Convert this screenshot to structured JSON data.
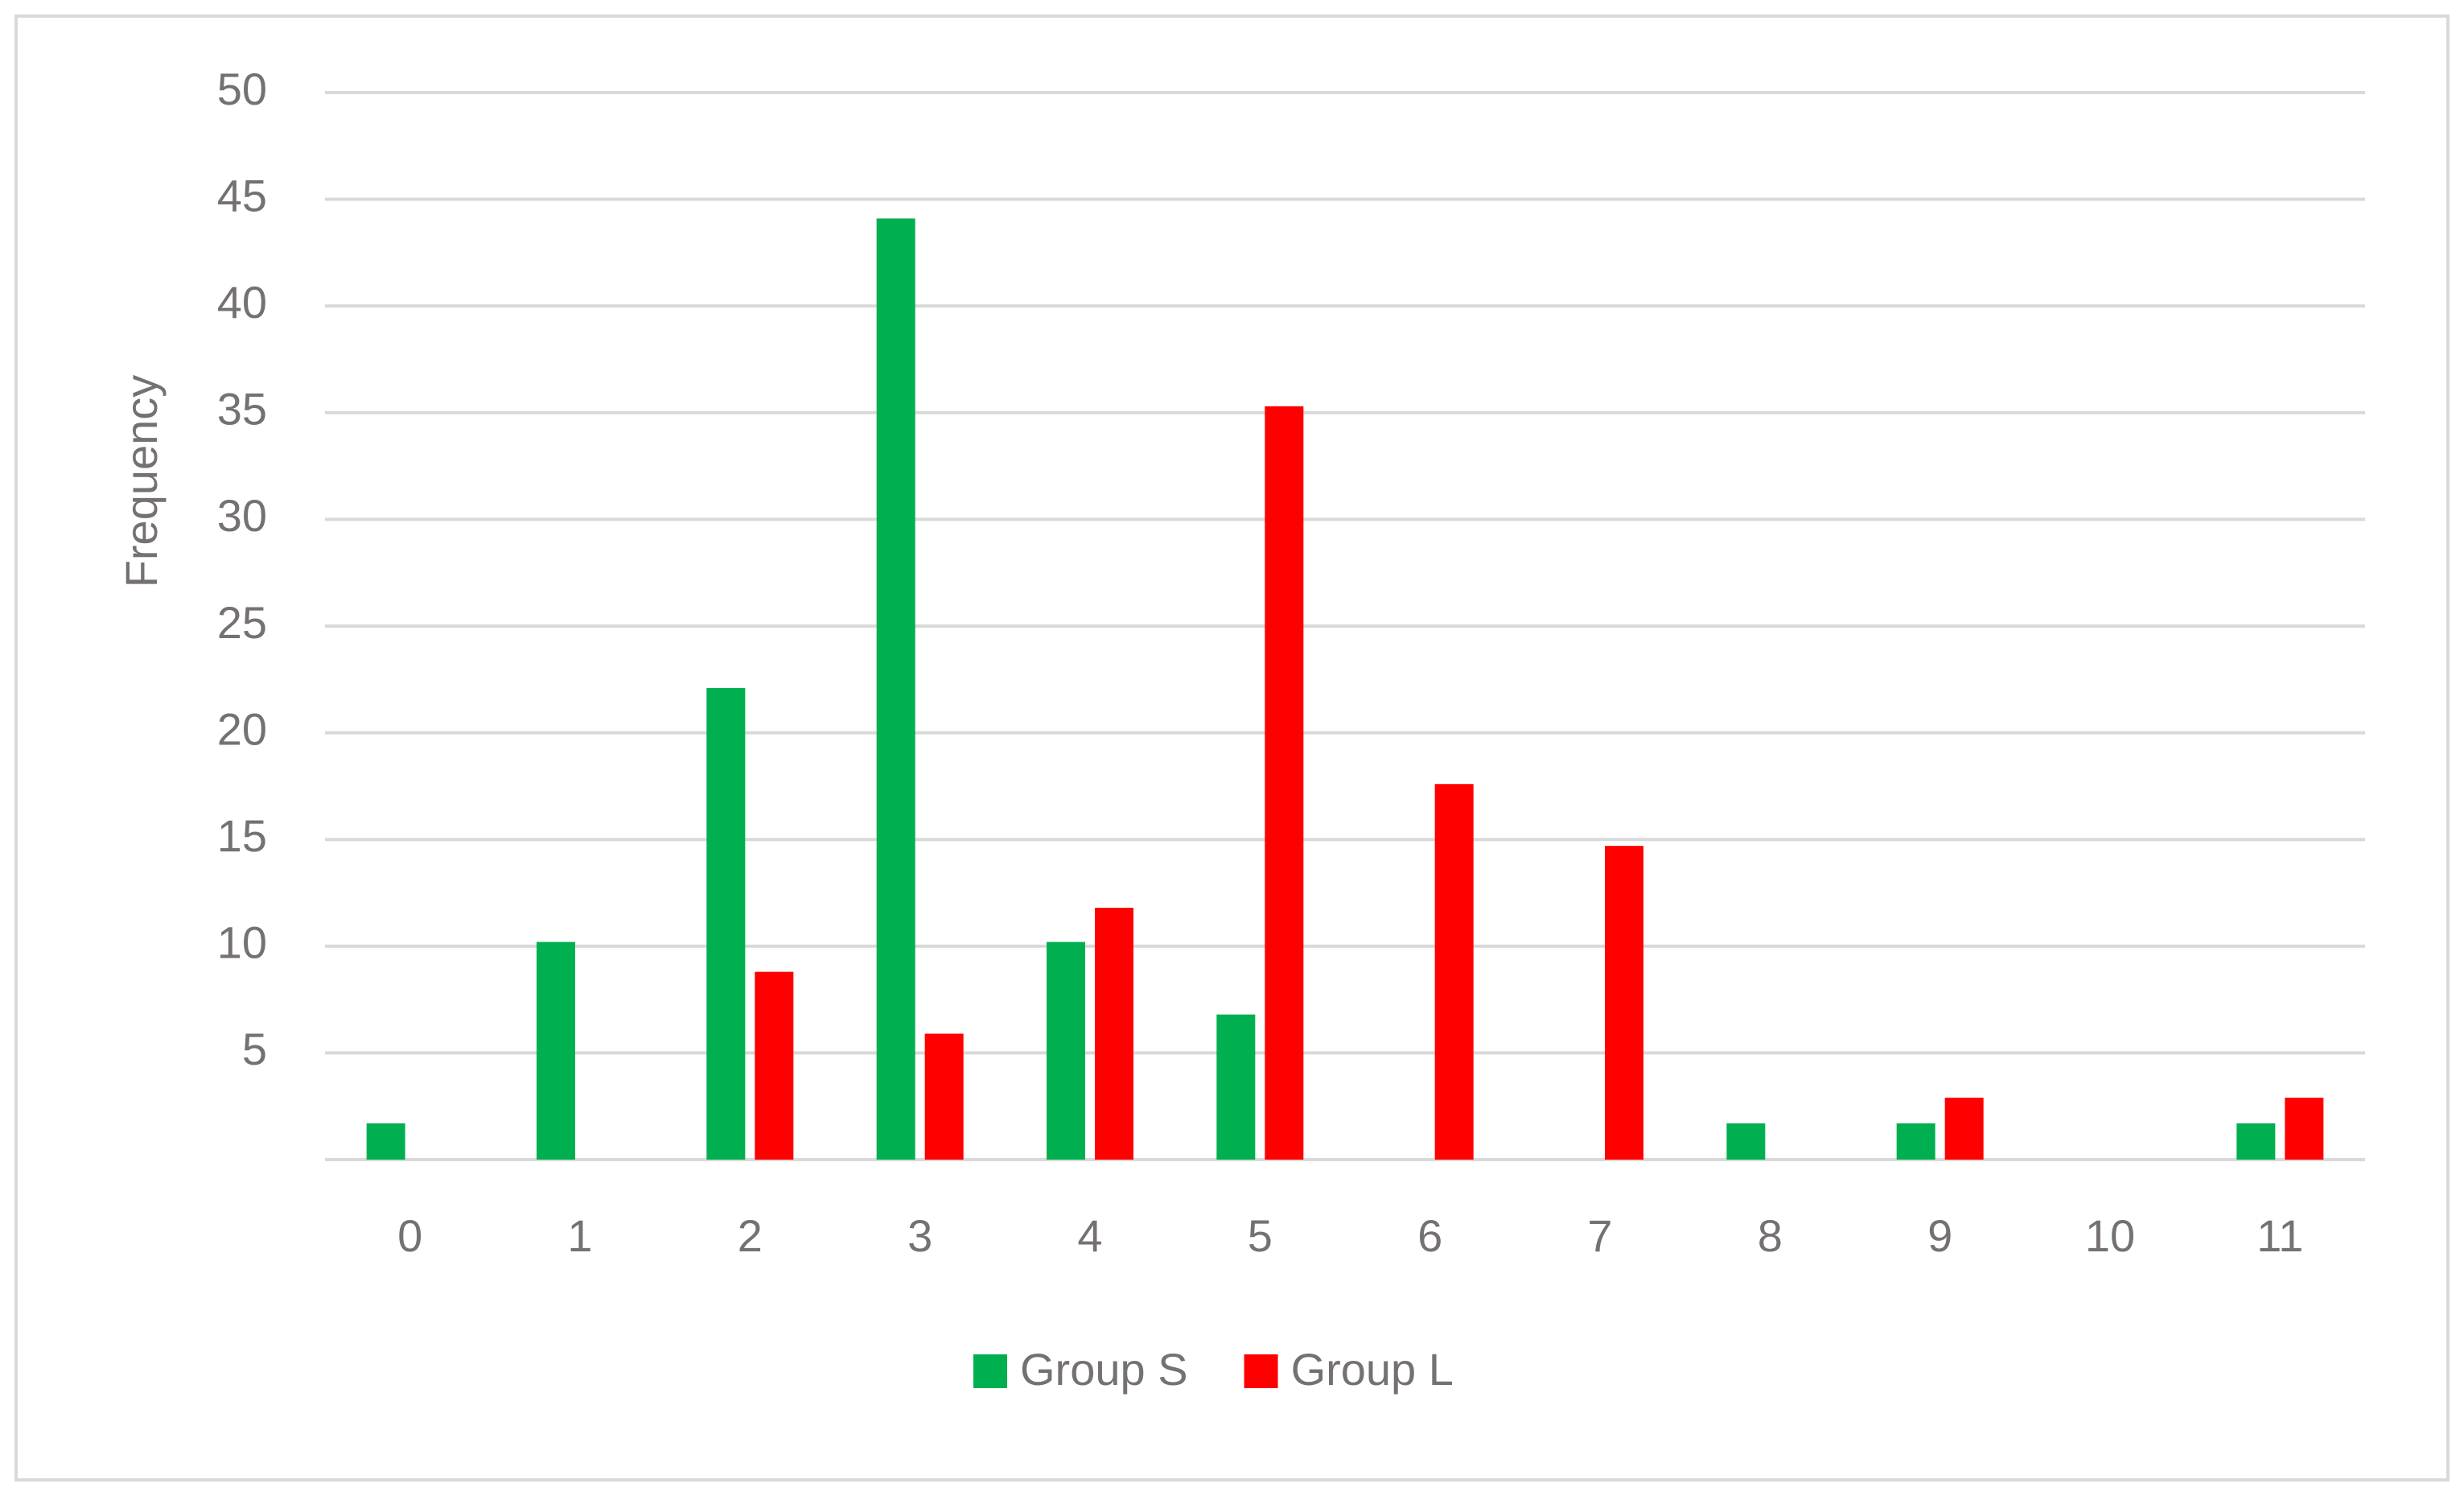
{
  "chart_data": {
    "type": "bar",
    "y_label": "Frequency",
    "categories": [
      "0",
      "1",
      "2",
      "3",
      "4",
      "5",
      "6",
      "7",
      "8",
      "9",
      "10",
      "11"
    ],
    "series": [
      {
        "name": "Group S",
        "color": "#00b050",
        "values": [
          1.7,
          10.2,
          22.1,
          44.1,
          10.2,
          6.8,
          0,
          0,
          1.7,
          1.7,
          0,
          1.7
        ]
      },
      {
        "name": "Group L",
        "color": "#ff0000",
        "values": [
          0,
          0,
          8.8,
          5.9,
          11.8,
          35.3,
          17.6,
          14.7,
          0,
          2.9,
          0,
          2.9
        ]
      }
    ],
    "ylim": [
      0,
      50
    ],
    "yticks": [
      5,
      10,
      15,
      20,
      25,
      30,
      35,
      40,
      45,
      50
    ],
    "grid": true,
    "legend": "bottom"
  }
}
